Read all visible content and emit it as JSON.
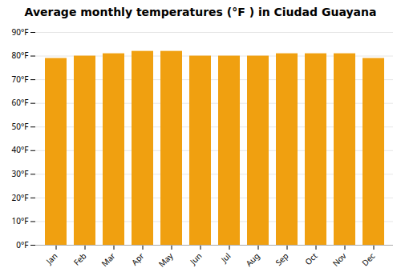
{
  "chart_data": {
    "type": "bar",
    "title": "Average monthly temperatures (°F ) in Ciudad Guayana",
    "categories": [
      "Jan",
      "Feb",
      "Mar",
      "Apr",
      "May",
      "Jun",
      "Jul",
      "Aug",
      "Sep",
      "Oct",
      "Nov",
      "Dec"
    ],
    "values": [
      79,
      80,
      81,
      82,
      82,
      80,
      80,
      80,
      81,
      81,
      81,
      79
    ],
    "color": "#F0A010",
    "ylim": [
      0,
      90
    ],
    "yticks": [
      {
        "value": 0,
        "label": "0°F"
      },
      {
        "value": 10,
        "label": "10°F"
      },
      {
        "value": 20,
        "label": "20°F"
      },
      {
        "value": 30,
        "label": "30°F"
      },
      {
        "value": 40,
        "label": "40°F"
      },
      {
        "value": 50,
        "label": "50°F"
      },
      {
        "value": 60,
        "label": "60°F"
      },
      {
        "value": 70,
        "label": "70°F"
      },
      {
        "value": 80,
        "label": "80°F"
      },
      {
        "value": 90,
        "label": "90°F"
      }
    ],
    "grid": true
  }
}
